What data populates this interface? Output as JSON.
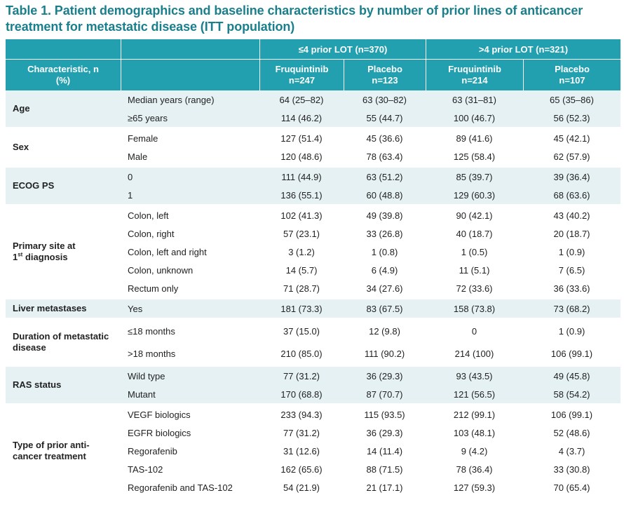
{
  "title": "Table 1. Patient demographics and baseline characteristics by number of prior lines of anticancer treatment for metastatic disease (ITT population)",
  "header": {
    "group1": "≤4 prior LOT (n=370)",
    "group2": ">4 prior LOT (n=321)",
    "characteristic": "Characteristic, n (%)",
    "col_fruq1": "Fruquintinib n=247",
    "col_plac1": "Placebo n=123",
    "col_fruq2": "Fruquintinib n=214",
    "col_plac2": "Placebo n=107"
  },
  "groups": [
    {
      "label": "Age",
      "rows": [
        {
          "sub": "Median years (range)",
          "v": [
            "64 (25–82)",
            "63 (30–82)",
            "63 (31–81)",
            "65 (35–86)"
          ]
        },
        {
          "sub": "≥65 years",
          "v": [
            "114 (46.2)",
            "55 (44.7)",
            "100 (46.7)",
            "56 (52.3)"
          ]
        }
      ]
    },
    {
      "label": "Sex",
      "rows": [
        {
          "sub": "Female",
          "v": [
            "127 (51.4)",
            "45 (36.6)",
            "89 (41.6)",
            "45 (42.1)"
          ]
        },
        {
          "sub": "Male",
          "v": [
            "120 (48.6)",
            "78 (63.4)",
            "125 (58.4)",
            "62 (57.9)"
          ]
        }
      ]
    },
    {
      "label": "ECOG PS",
      "rows": [
        {
          "sub": "0",
          "v": [
            "111 (44.9)",
            "63 (51.2)",
            "85 (39.7)",
            "39 (36.4)"
          ]
        },
        {
          "sub": "1",
          "v": [
            "136 (55.1)",
            "60 (48.8)",
            "129 (60.3)",
            "68 (63.6)"
          ]
        }
      ]
    },
    {
      "label": "Primary site at",
      "label2": "1",
      "label_sup": "st",
      "label3": " diagnosis",
      "rows": [
        {
          "sub": "Colon, left",
          "v": [
            "102 (41.3)",
            "49 (39.8)",
            "90 (42.1)",
            "43 (40.2)"
          ]
        },
        {
          "sub": "Colon, right",
          "v": [
            "57 (23.1)",
            "33 (26.8)",
            "40 (18.7)",
            "20 (18.7)"
          ]
        },
        {
          "sub": "Colon, left and right",
          "v": [
            "3 (1.2)",
            "1 (0.8)",
            "1 (0.5)",
            "1 (0.9)"
          ]
        },
        {
          "sub": "Colon, unknown",
          "v": [
            "14 (5.7)",
            "6 (4.9)",
            "11 (5.1)",
            "7 (6.5)"
          ]
        },
        {
          "sub": "Rectum only",
          "v": [
            "71 (28.7)",
            "34 (27.6)",
            "72 (33.6)",
            "36 (33.6)"
          ]
        }
      ]
    },
    {
      "label": "Liver metastases",
      "rows": [
        {
          "sub": "Yes",
          "v": [
            "181 (73.3)",
            "83 (67.5)",
            "158 (73.8)",
            "73 (68.2)"
          ]
        }
      ]
    },
    {
      "label": "Duration of metastatic disease",
      "rows": [
        {
          "sub": "≤18 months",
          "v": [
            "37 (15.0)",
            "12 (9.8)",
            "0",
            "1 (0.9)"
          ]
        },
        {
          "sub": ">18 months",
          "v": [
            "210 (85.0)",
            "111 (90.2)",
            "214 (100)",
            "106 (99.1)"
          ]
        }
      ]
    },
    {
      "label": "RAS status",
      "rows": [
        {
          "sub": "Wild type",
          "v": [
            "77 (31.2)",
            "36 (29.3)",
            "93 (43.5)",
            "49 (45.8)"
          ]
        },
        {
          "sub": "Mutant",
          "v": [
            "170 (68.8)",
            "87 (70.7)",
            "121 (56.5)",
            "58 (54.2)"
          ]
        }
      ]
    },
    {
      "label": "Type of prior anti-cancer treatment",
      "rows": [
        {
          "sub": "VEGF biologics",
          "v": [
            "233 (94.3)",
            "115 (93.5)",
            "212 (99.1)",
            "106 (99.1)"
          ]
        },
        {
          "sub": "EGFR biologics",
          "v": [
            "77 (31.2)",
            "36 (29.3)",
            "103 (48.1)",
            "52 (48.6)"
          ]
        },
        {
          "sub": "Regorafenib",
          "v": [
            "31 (12.6)",
            "14 (11.4)",
            "9 (4.2)",
            "4 (3.7)"
          ]
        },
        {
          "sub": "TAS-102",
          "v": [
            "162 (65.6)",
            "88 (71.5)",
            "78 (36.4)",
            "33 (30.8)"
          ]
        },
        {
          "sub": "Regorafenib and TAS-102",
          "v": [
            "54 (21.9)",
            "21 (17.1)",
            "127 (59.3)",
            "70 (65.4)"
          ]
        }
      ]
    }
  ]
}
